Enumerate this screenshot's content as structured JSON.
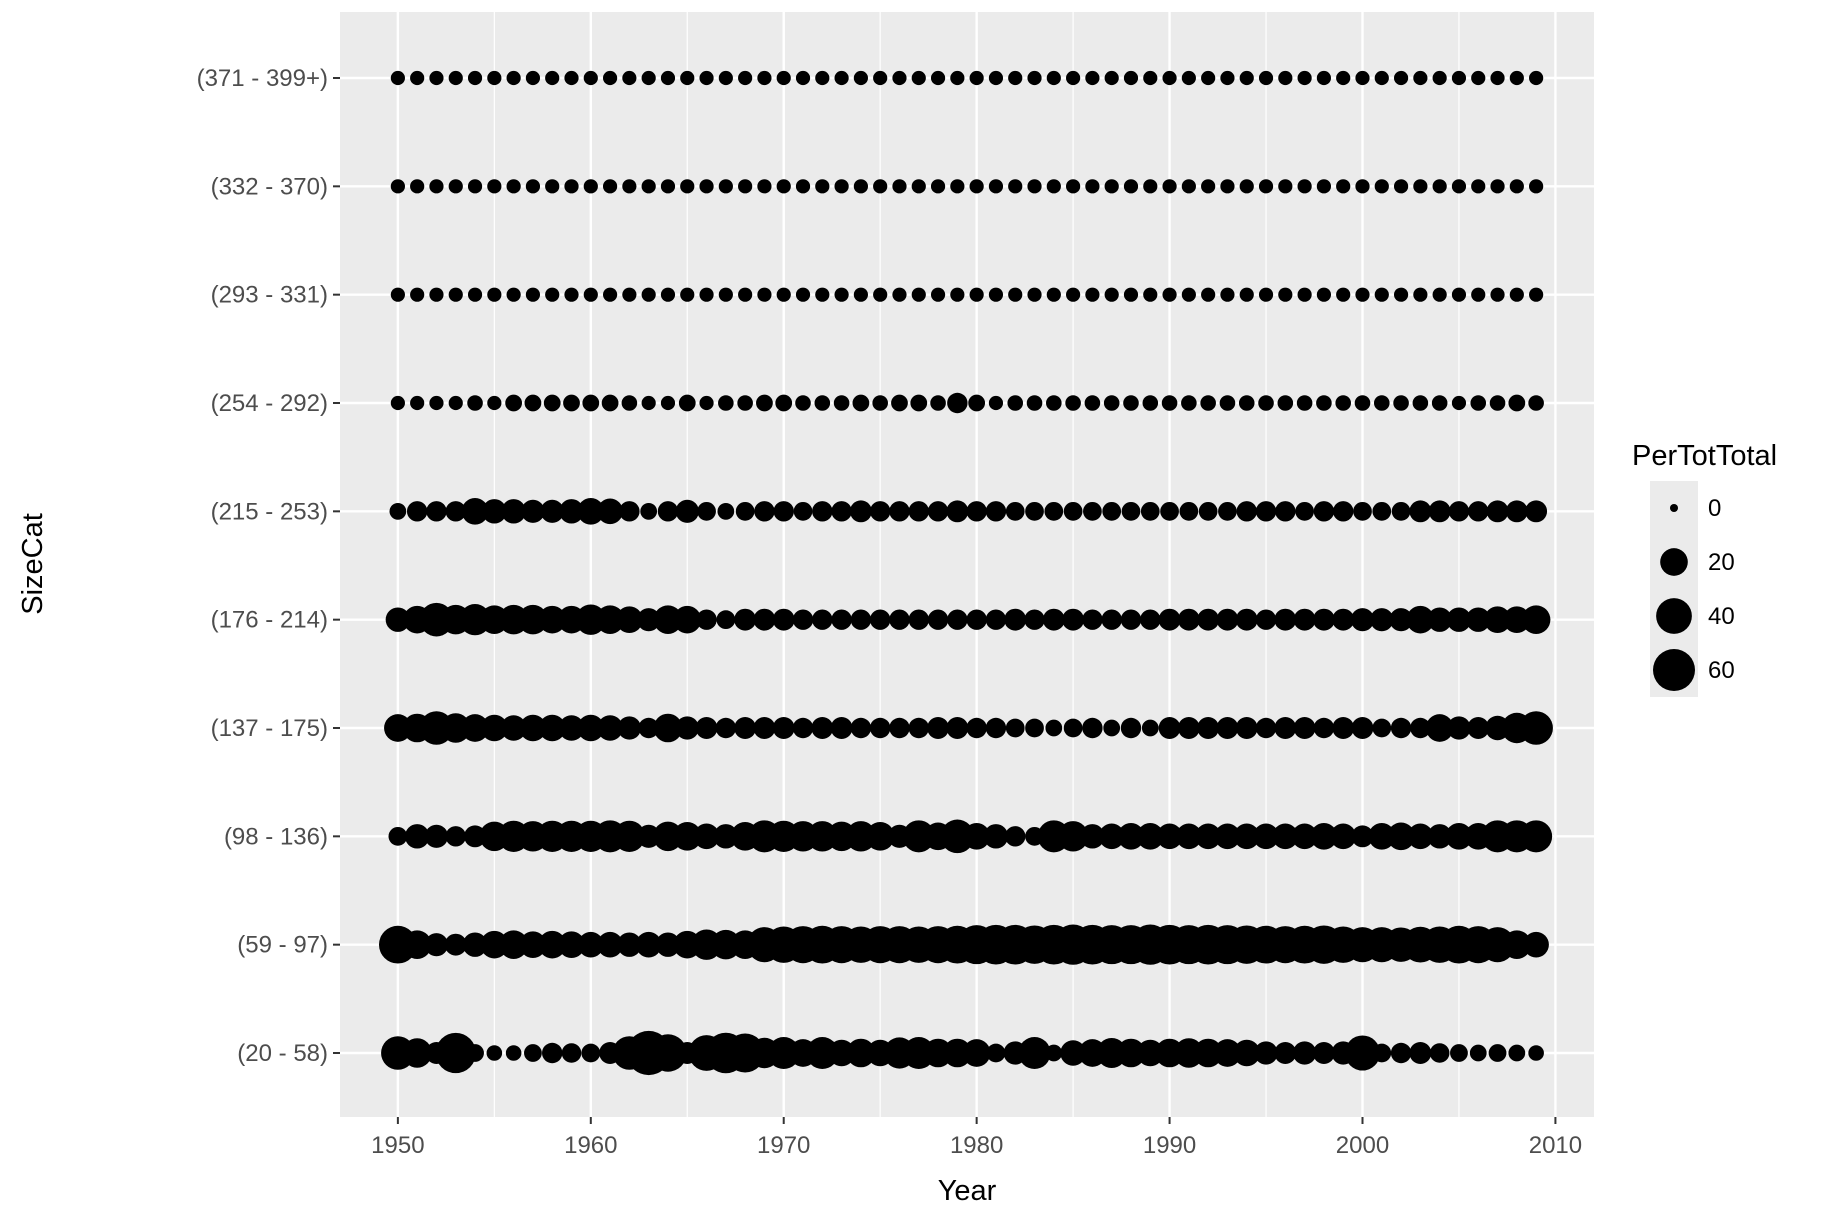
{
  "chart_data": {
    "type": "scatter",
    "xlabel": "Year",
    "ylabel": "SizeCat",
    "xlim": [
      1947,
      2012
    ],
    "x_ticks": [
      1950,
      1960,
      1970,
      1980,
      1990,
      2000,
      2010
    ],
    "x_tick_labels": [
      "1950",
      "1960",
      "1970",
      "1980",
      "1990",
      "2000",
      "2010"
    ],
    "categories": [
      "(20 - 58)",
      "(59 - 97)",
      "(98 - 136)",
      "(137 - 175)",
      "(176 - 214)",
      "(215 - 253)",
      "(254 - 292)",
      "(293 - 331)",
      "(332 - 370)",
      "(371 - 399+)"
    ],
    "years": [
      1950,
      1951,
      1952,
      1953,
      1954,
      1955,
      1956,
      1957,
      1958,
      1959,
      1960,
      1961,
      1962,
      1963,
      1964,
      1965,
      1966,
      1967,
      1968,
      1969,
      1970,
      1971,
      1972,
      1973,
      1974,
      1975,
      1976,
      1977,
      1978,
      1979,
      1980,
      1981,
      1982,
      1983,
      1984,
      1985,
      1986,
      1987,
      1988,
      1989,
      1990,
      1991,
      1992,
      1993,
      1994,
      1995,
      1996,
      1997,
      1998,
      1999,
      2000,
      2001,
      2002,
      2003,
      2004,
      2005,
      2006,
      2007,
      2008,
      2009
    ],
    "series": [
      {
        "category": "(20 - 58)",
        "values": [
          34,
          24,
          10,
          54,
          5,
          3,
          3,
          5,
          8,
          7,
          6,
          10,
          34,
          68,
          45,
          10,
          40,
          55,
          50,
          26,
          30,
          20,
          30,
          18,
          22,
          18,
          28,
          30,
          22,
          22,
          20,
          6,
          12,
          30,
          4,
          16,
          20,
          25,
          22,
          18,
          22,
          24,
          22,
          20,
          18,
          12,
          10,
          12,
          10,
          12,
          38,
          6,
          8,
          10,
          7,
          5,
          4,
          5,
          4,
          3
        ]
      },
      {
        "category": "(59 - 97)",
        "values": [
          46,
          22,
          12,
          10,
          14,
          20,
          22,
          18,
          20,
          18,
          16,
          16,
          14,
          16,
          14,
          20,
          26,
          24,
          22,
          38,
          42,
          44,
          46,
          44,
          42,
          44,
          44,
          42,
          44,
          46,
          50,
          52,
          52,
          48,
          52,
          54,
          52,
          50,
          50,
          54,
          52,
          50,
          52,
          50,
          48,
          46,
          44,
          46,
          48,
          42,
          38,
          38,
          36,
          40,
          42,
          46,
          44,
          38,
          22,
          16
        ]
      },
      {
        "category": "(98 - 136)",
        "values": [
          6,
          14,
          12,
          8,
          10,
          24,
          28,
          26,
          28,
          28,
          28,
          30,
          28,
          12,
          24,
          22,
          16,
          14,
          22,
          30,
          28,
          26,
          26,
          24,
          26,
          22,
          12,
          30,
          20,
          34,
          18,
          14,
          8,
          6,
          30,
          26,
          14,
          16,
          18,
          18,
          16,
          16,
          16,
          16,
          16,
          16,
          16,
          16,
          18,
          16,
          10,
          18,
          20,
          16,
          14,
          18,
          18,
          30,
          30,
          30
        ]
      },
      {
        "category": "(137 - 175)",
        "values": [
          20,
          22,
          34,
          24,
          20,
          18,
          16,
          18,
          18,
          16,
          18,
          16,
          12,
          8,
          22,
          12,
          10,
          8,
          10,
          10,
          10,
          8,
          10,
          10,
          8,
          8,
          8,
          8,
          10,
          10,
          8,
          8,
          6,
          6,
          4,
          6,
          8,
          4,
          8,
          4,
          10,
          10,
          10,
          10,
          10,
          8,
          10,
          10,
          8,
          10,
          10,
          6,
          8,
          8,
          20,
          12,
          10,
          14,
          26,
          34
        ]
      },
      {
        "category": "(176 - 214)",
        "values": [
          14,
          20,
          34,
          24,
          28,
          22,
          24,
          24,
          20,
          20,
          26,
          22,
          18,
          12,
          22,
          20,
          8,
          6,
          10,
          10,
          10,
          8,
          8,
          8,
          8,
          8,
          8,
          8,
          8,
          8,
          8,
          8,
          10,
          8,
          10,
          10,
          8,
          8,
          8,
          8,
          10,
          10,
          10,
          10,
          10,
          8,
          10,
          10,
          10,
          10,
          12,
          12,
          12,
          20,
          14,
          14,
          14,
          18,
          18,
          22
        ]
      },
      {
        "category": "(215 - 253)",
        "values": [
          4,
          8,
          8,
          8,
          18,
          14,
          14,
          12,
          12,
          14,
          18,
          16,
          8,
          4,
          8,
          12,
          6,
          4,
          6,
          8,
          8,
          6,
          8,
          8,
          10,
          8,
          8,
          8,
          8,
          10,
          8,
          8,
          6,
          6,
          6,
          6,
          6,
          6,
          6,
          6,
          6,
          6,
          6,
          6,
          8,
          8,
          8,
          6,
          8,
          8,
          6,
          6,
          6,
          10,
          10,
          8,
          8,
          10,
          10,
          10
        ]
      },
      {
        "category": "(254 - 292)",
        "values": [
          2,
          2,
          2,
          2,
          3,
          2,
          4,
          4,
          4,
          4,
          4,
          4,
          3,
          2,
          2,
          4,
          2,
          3,
          3,
          4,
          4,
          3,
          3,
          3,
          4,
          3,
          4,
          4,
          3,
          8,
          4,
          2,
          3,
          3,
          3,
          3,
          3,
          3,
          3,
          3,
          3,
          3,
          3,
          3,
          3,
          3,
          3,
          3,
          3,
          3,
          3,
          3,
          3,
          3,
          3,
          2,
          3,
          3,
          4,
          3
        ]
      },
      {
        "category": "(293 - 331)",
        "values": [
          2,
          2,
          2,
          2,
          2,
          2,
          2,
          2,
          2,
          2,
          2,
          2,
          2,
          2,
          2,
          2,
          2,
          2,
          2,
          2,
          2,
          2,
          2,
          2,
          2,
          2,
          2,
          2,
          2,
          2,
          2,
          2,
          2,
          2,
          2,
          2,
          2,
          2,
          2,
          2,
          2,
          2,
          2,
          2,
          2,
          2,
          2,
          2,
          2,
          2,
          2,
          2,
          2,
          2,
          2,
          2,
          2,
          2,
          2,
          2
        ]
      },
      {
        "category": "(332 - 370)",
        "values": [
          2,
          2,
          2,
          2,
          2,
          2,
          2,
          2,
          2,
          2,
          2,
          2,
          2,
          2,
          2,
          2,
          2,
          2,
          2,
          2,
          2,
          2,
          2,
          2,
          2,
          2,
          2,
          2,
          2,
          2,
          2,
          2,
          2,
          2,
          2,
          2,
          2,
          2,
          2,
          2,
          2,
          2,
          2,
          2,
          2,
          2,
          2,
          2,
          2,
          2,
          2,
          2,
          2,
          2,
          2,
          2,
          2,
          2,
          2,
          2
        ]
      },
      {
        "category": "(371 - 399+)",
        "values": [
          2,
          2,
          2,
          2,
          2,
          2,
          2,
          2,
          2,
          2,
          2,
          2,
          2,
          2,
          2,
          2,
          2,
          2,
          2,
          2,
          2,
          2,
          2,
          2,
          2,
          2,
          2,
          2,
          2,
          2,
          2,
          2,
          2,
          2,
          2,
          2,
          2,
          2,
          2,
          2,
          2,
          2,
          2,
          2,
          2,
          2,
          2,
          2,
          2,
          2,
          2,
          2,
          2,
          2,
          2,
          2,
          2,
          2,
          2,
          2
        ]
      }
    ],
    "size_legend": {
      "title": "PerTotTotal",
      "values": [
        0,
        20,
        40,
        60
      ],
      "labels": [
        "0",
        "20",
        "40",
        "60"
      ]
    },
    "legend_position": "right",
    "grid": true,
    "colors": {
      "panel_background": "#ebebeb",
      "grid": "#ffffff",
      "points": "#000000",
      "tick_text": "#4d4d4d",
      "axis_ticks": "#333333"
    }
  }
}
